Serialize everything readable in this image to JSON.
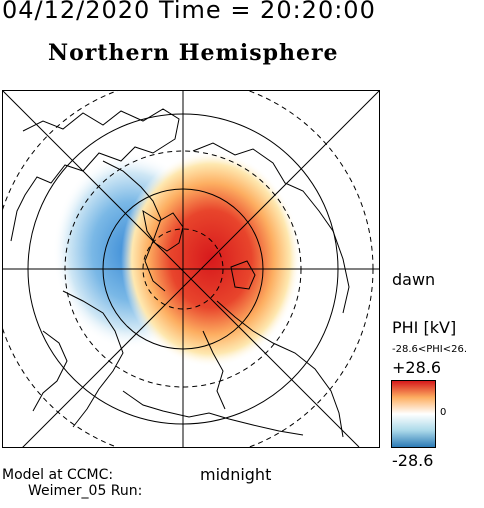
{
  "header": {
    "date_time": "04/12/2020 Time = 20:20:00",
    "hemisphere_title": "Northern Hemisphere"
  },
  "map": {
    "noon_label": "",
    "dawn_label": "dawn",
    "midnight_label": "midnight"
  },
  "colorbar": {
    "quantity_label": "PHI [kV]",
    "range_label": "-28.6<PHI<26.",
    "max_label": "+28.6",
    "zero_label": "0",
    "min_label": "-28.6",
    "colors": {
      "positive": "#d7191c",
      "mid_positive": "#fdae61",
      "zero": "#ffffff",
      "mid_negative": "#abd9e9",
      "negative": "#2c7bb6"
    }
  },
  "footer": {
    "model_label": "Model at CCMC:",
    "run_label": "Weimer_05 Run:"
  }
}
